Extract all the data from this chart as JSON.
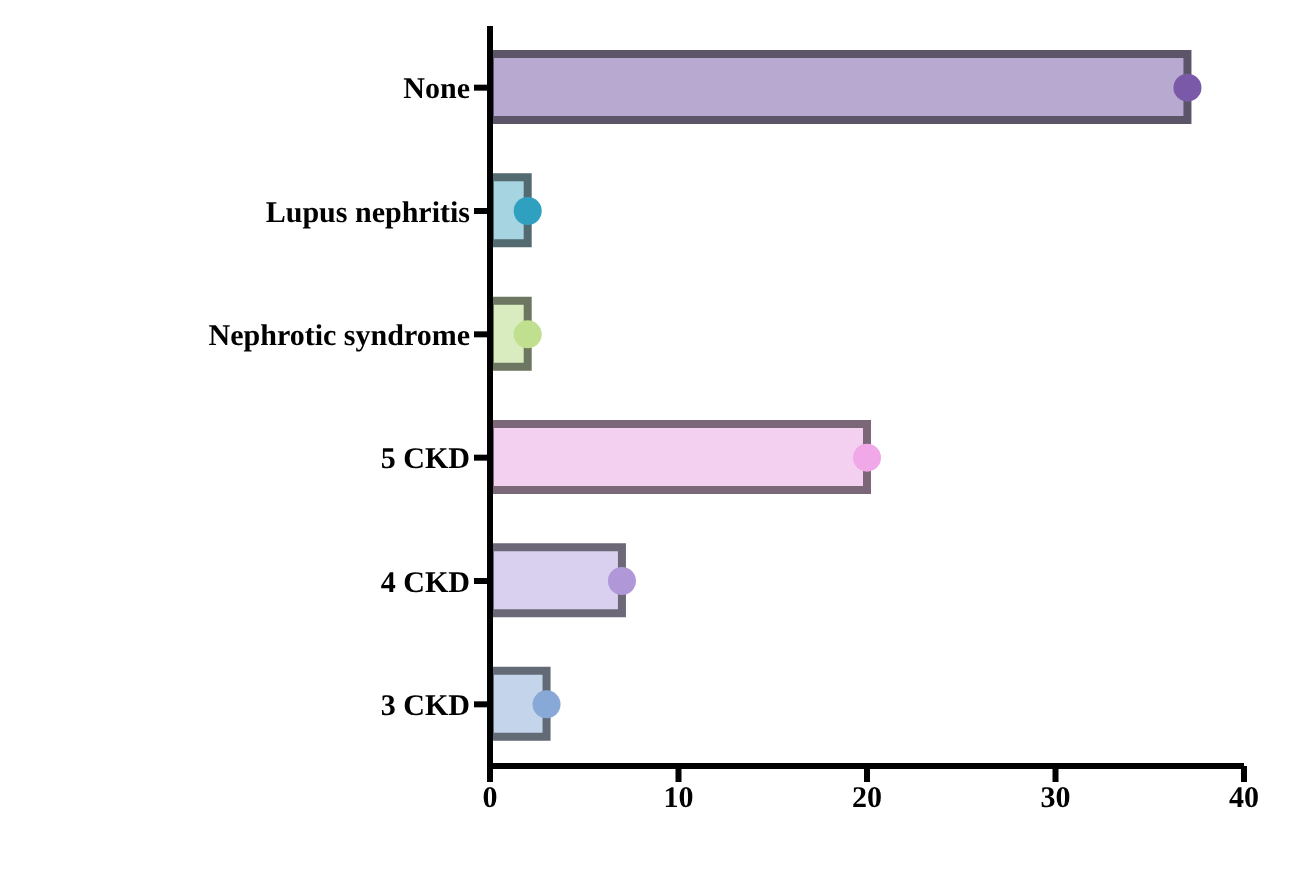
{
  "chart_data": {
    "type": "bar",
    "orientation": "horizontal",
    "categories": [
      "None",
      "Lupus nephritis",
      "Nephrotic syndrome",
      "5 CKD",
      "4 CKD",
      "3 CKD"
    ],
    "series": [
      {
        "colors": [
          "#b8a9d0",
          "#a6d4e0",
          "#d8ecc0",
          "#f4d0f0",
          "#d8d0ee",
          "#c4d4ea"
        ],
        "values": [
          37,
          2,
          2,
          20,
          7,
          3
        ]
      },
      {
        "type": "scatter",
        "colors": [
          "#7a5aa8",
          "#30a0c0",
          "#c0e090",
          "#f0a8e8",
          "#b098d8",
          "#88a8d8"
        ],
        "values": [
          37,
          2,
          2,
          20,
          7,
          3
        ]
      }
    ],
    "xlim": [
      0,
      40
    ],
    "xticks": [
      0,
      10,
      20,
      30,
      40
    ],
    "grid": false
  }
}
